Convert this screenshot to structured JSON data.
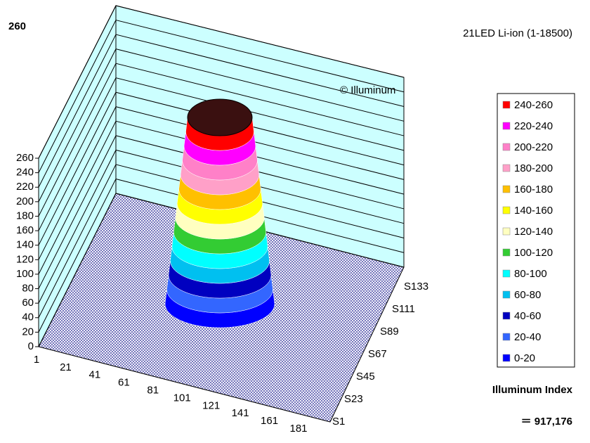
{
  "chart_data": {
    "type": "surface3d",
    "title": "21LED Li-ion (1-18500)",
    "peak_label": "260",
    "watermark": "© Illuminum",
    "index_label": "Illuminum Index",
    "index_value": "＝ 917,176",
    "zlim": [
      0,
      260
    ],
    "zticks": [
      0,
      20,
      40,
      60,
      80,
      100,
      120,
      140,
      160,
      180,
      200,
      220,
      240,
      260
    ],
    "xticks": [
      1,
      21,
      41,
      61,
      81,
      101,
      121,
      141,
      161,
      181
    ],
    "series_labels": [
      "S1",
      "S23",
      "S45",
      "S67",
      "S89",
      "S111",
      "S133"
    ],
    "legend": [
      {
        "label": "240-260",
        "color": "#ff0000"
      },
      {
        "label": "220-240",
        "color": "#ff00ff"
      },
      {
        "label": "200-220",
        "color": "#ff80c8"
      },
      {
        "label": "180-200",
        "color": "#ffa0c8"
      },
      {
        "label": "160-180",
        "color": "#ffc000"
      },
      {
        "label": "140-160",
        "color": "#ffff00"
      },
      {
        "label": "120-140",
        "color": "#ffffc0"
      },
      {
        "label": "100-120",
        "color": "#33cc33"
      },
      {
        "label": "80-100",
        "color": "#00ffff"
      },
      {
        "label": "60-80",
        "color": "#00c0f0"
      },
      {
        "label": "40-60",
        "color": "#0000c0"
      },
      {
        "label": "20-40",
        "color": "#3366ff"
      },
      {
        "label": "0-20",
        "color": "#0000ff"
      }
    ]
  }
}
